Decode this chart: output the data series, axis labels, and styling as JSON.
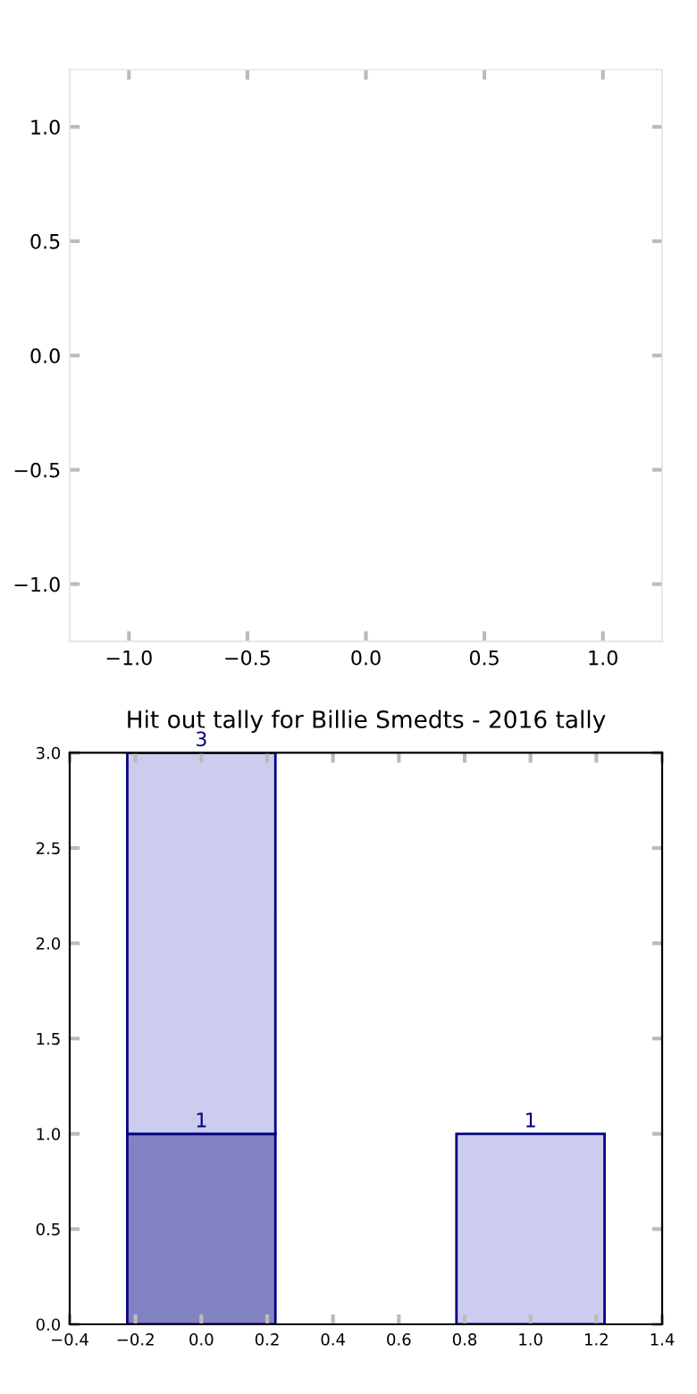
{
  "chart_data": [
    {
      "type": "scatter",
      "xlim": [
        -1.25,
        1.25
      ],
      "ylim": [
        -1.25,
        1.25
      ],
      "xticks": [
        {
          "value": -1.0,
          "label": "−1.0"
        },
        {
          "value": -0.5,
          "label": "−0.5"
        },
        {
          "value": 0.0,
          "label": "0.0"
        },
        {
          "value": 0.5,
          "label": "0.5"
        },
        {
          "value": 1.0,
          "label": "1.0"
        }
      ],
      "yticks": [
        {
          "value": -1.0,
          "label": "−1.0"
        },
        {
          "value": -0.5,
          "label": "−0.5"
        },
        {
          "value": 0.0,
          "label": "0.0"
        },
        {
          "value": 0.5,
          "label": "0.5"
        },
        {
          "value": 1.0,
          "label": "1.0"
        }
      ]
    },
    {
      "type": "bar",
      "title": "Hit out tally for Billie Smedts - 2016 tally",
      "x": [
        0,
        1
      ],
      "series": [
        {
          "color": "#8282c2",
          "values": [
            1,
            null
          ],
          "value_labels": [
            "1",
            null
          ]
        },
        {
          "color": "#ccccee",
          "values": [
            2,
            1
          ],
          "value_labels": [
            null,
            "1"
          ]
        }
      ],
      "stacked": true,
      "totals": [
        "3",
        null
      ],
      "xlim": [
        -0.4,
        1.4
      ],
      "ylim": [
        0,
        3
      ],
      "xticks": [
        {
          "value": -0.4,
          "label": "−0.4"
        },
        {
          "value": -0.2,
          "label": "−0.2"
        },
        {
          "value": 0.0,
          "label": "0.0"
        },
        0.2,
        0.4,
        0.6,
        0.8,
        {
          "value": 1.0,
          "label": "1.0"
        },
        1.2,
        1.4
      ],
      "yticks": [
        {
          "value": 0.0,
          "label": "0.0"
        },
        0.5,
        {
          "value": 1.0,
          "label": "1.0"
        },
        1.5,
        {
          "value": 2.0,
          "label": "2.0"
        },
        2.5,
        {
          "value": 3.0,
          "label": "3.0"
        }
      ]
    }
  ]
}
